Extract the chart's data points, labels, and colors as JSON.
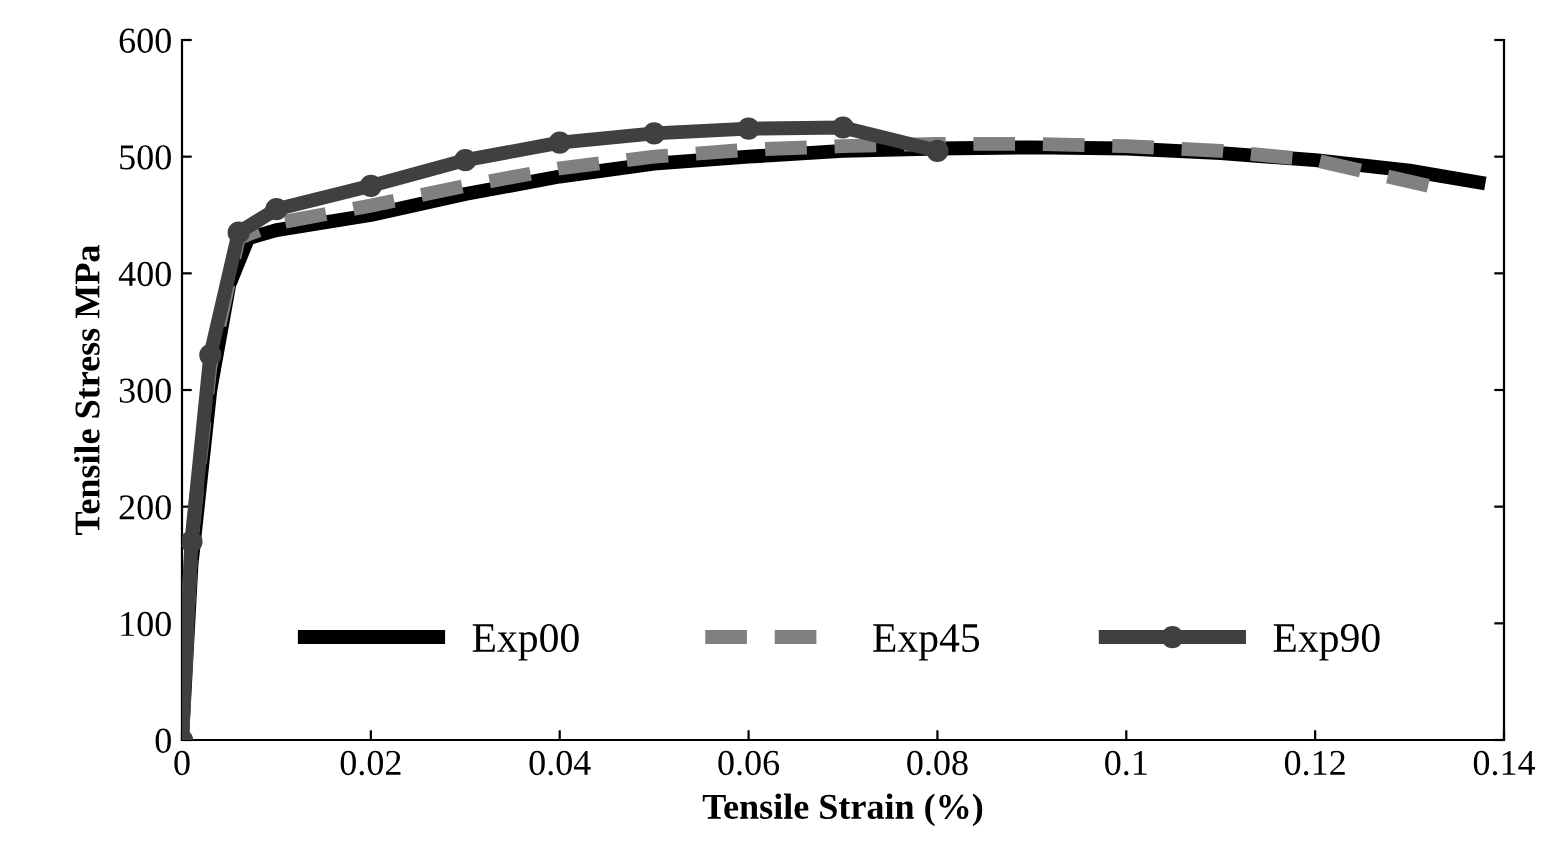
{
  "chart_data": {
    "type": "line",
    "xlabel": "Tensile Strain (%)",
    "ylabel": "Tensile Stress MPa",
    "xlim": [
      0,
      0.14
    ],
    "xticks": [
      0,
      0.02,
      0.04,
      0.06,
      0.08,
      0.1,
      0.12,
      0.14
    ],
    "ylim": [
      0,
      600
    ],
    "yticks": [
      0,
      100,
      200,
      300,
      400,
      500,
      600
    ],
    "legend": "bottom",
    "grid": false,
    "series": [
      {
        "name": "Exp00",
        "color": "#000000",
        "line_style": "solid",
        "marker": "none",
        "x": [
          0,
          0.001,
          0.003,
          0.005,
          0.007,
          0.01,
          0.02,
          0.03,
          0.04,
          0.05,
          0.06,
          0.07,
          0.08,
          0.09,
          0.1,
          0.11,
          0.12,
          0.13,
          0.1373
        ],
        "values": [
          0,
          150,
          300,
          390,
          430,
          437,
          450,
          468,
          483,
          494,
          500,
          505,
          507,
          508,
          507,
          503,
          497,
          488,
          478
        ]
      },
      {
        "name": "Exp45",
        "color": "#808080",
        "line_style": "dashed",
        "marker": "none",
        "x": [
          0,
          0.001,
          0.003,
          0.006,
          0.01,
          0.02,
          0.03,
          0.04,
          0.05,
          0.06,
          0.07,
          0.08,
          0.09,
          0.1,
          0.11,
          0.12,
          0.132
        ],
        "values": [
          0,
          170,
          320,
          430,
          443,
          458,
          475,
          490,
          500,
          506,
          509,
          511,
          511,
          509,
          505,
          497,
          475
        ]
      },
      {
        "name": "Exp90",
        "color": "#404040",
        "line_style": "solid",
        "marker": "circle",
        "x": [
          0,
          0.001,
          0.003,
          0.006,
          0.01,
          0.02,
          0.03,
          0.04,
          0.05,
          0.06,
          0.07,
          0.08
        ],
        "values": [
          0,
          170,
          330,
          435,
          455,
          475,
          497,
          512,
          520,
          524,
          525,
          505
        ]
      }
    ]
  }
}
